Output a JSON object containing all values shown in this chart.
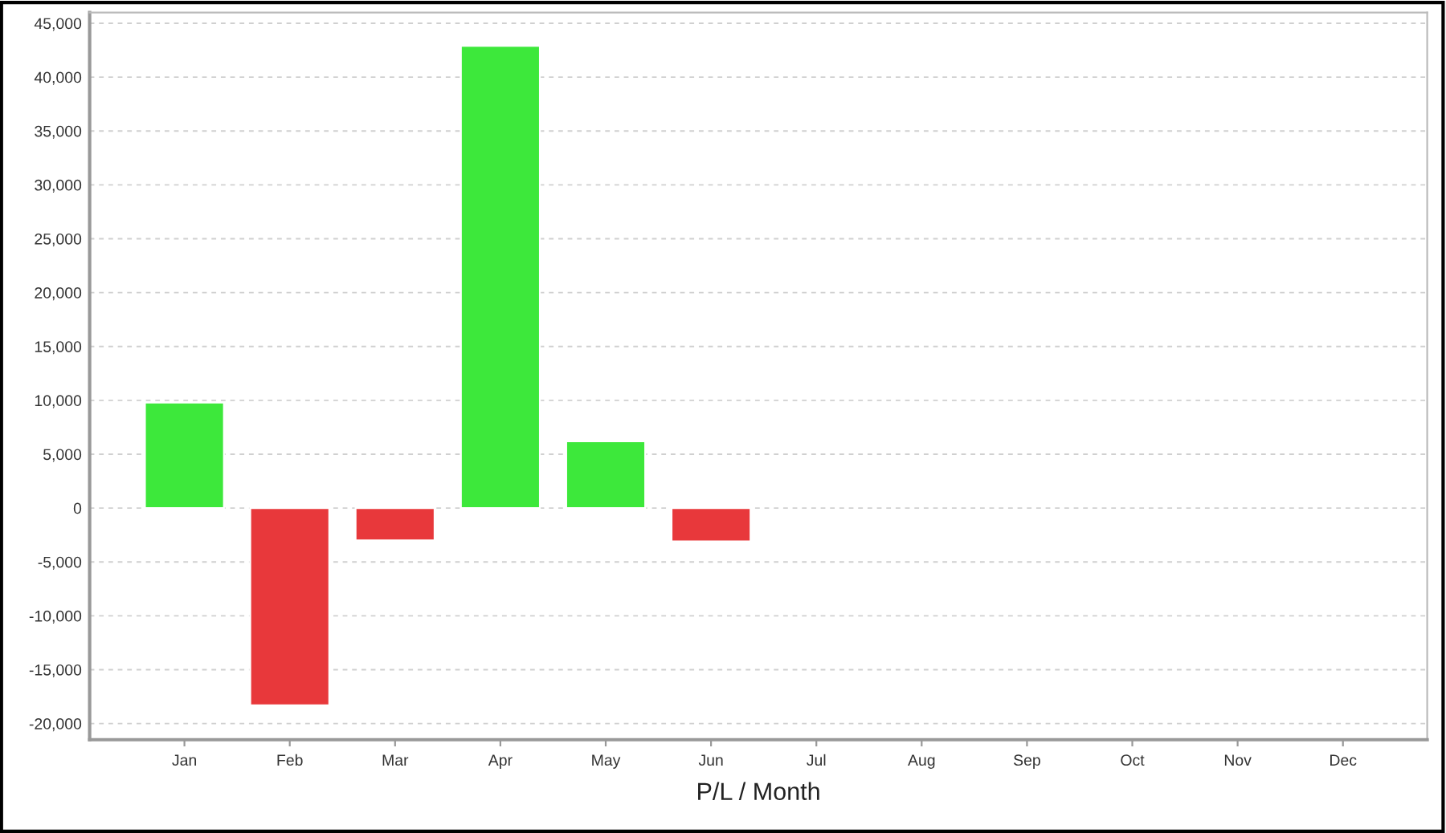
{
  "chart_data": {
    "type": "bar",
    "xlabel": "P/L / Month",
    "categories": [
      "Jan",
      "Feb",
      "Mar",
      "Apr",
      "May",
      "Jun",
      "Jul",
      "Aug",
      "Sep",
      "Oct",
      "Nov",
      "Dec"
    ],
    "values": [
      9800,
      -18300,
      -3000,
      42900,
      6200,
      -3100,
      null,
      null,
      null,
      null,
      null,
      null
    ],
    "colors": [
      "#3de83b",
      "#e8383b",
      "#e8383b",
      "#3de83b",
      "#3de83b",
      "#e8383b",
      "#3de83b",
      "#3de83b",
      "#3de83b",
      "#3de83b",
      "#3de83b",
      "#3de83b"
    ],
    "ylim": [
      -21500,
      46000
    ],
    "yticks": [
      {
        "value": -20000,
        "label": "-20,000"
      },
      {
        "value": -15000,
        "label": "-15,000"
      },
      {
        "value": -10000,
        "label": "-10,000"
      },
      {
        "value": -5000,
        "label": "-5,000"
      },
      0,
      {
        "value": 5000,
        "label": "5,000"
      },
      {
        "value": 10000,
        "label": "10,000"
      },
      {
        "value": 15000,
        "label": "15,000"
      },
      {
        "value": 20000,
        "label": "20,000"
      },
      {
        "value": 25000,
        "label": "25,000"
      },
      {
        "value": 30000,
        "label": "30,000"
      },
      {
        "value": 35000,
        "label": "35,000"
      },
      {
        "value": 40000,
        "label": "40,000"
      },
      {
        "value": 45000,
        "label": "45,000"
      }
    ],
    "grid": "y"
  }
}
